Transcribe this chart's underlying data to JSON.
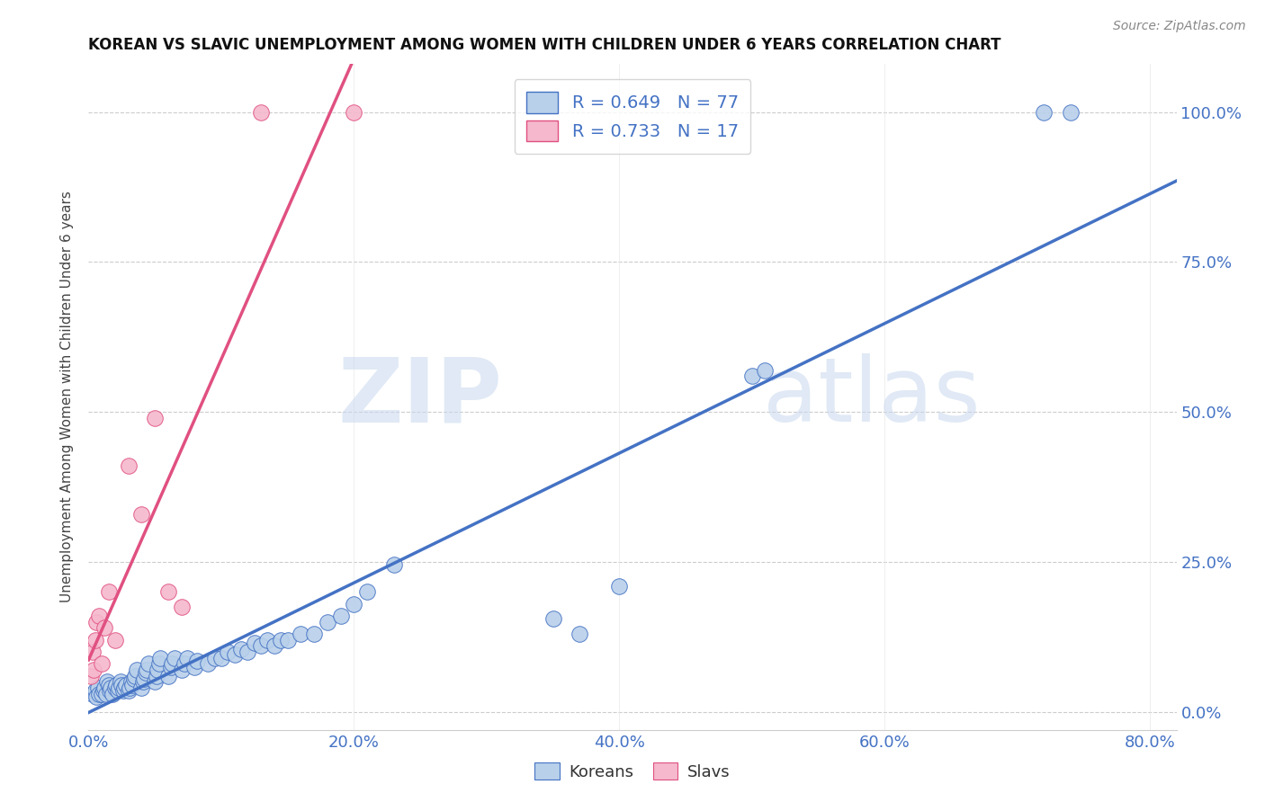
{
  "title": "KOREAN VS SLAVIC UNEMPLOYMENT AMONG WOMEN WITH CHILDREN UNDER 6 YEARS CORRELATION CHART",
  "source": "Source: ZipAtlas.com",
  "ylabel": "Unemployment Among Women with Children Under 6 years",
  "xlim": [
    0.0,
    0.82
  ],
  "ylim": [
    -0.03,
    1.08
  ],
  "korean_R": 0.649,
  "korean_N": 77,
  "slavic_R": 0.733,
  "slavic_N": 17,
  "korean_color": "#b8d0ea",
  "slavic_color": "#f5b8cc",
  "korean_line_color": "#4472c4",
  "slavic_line_color": "#e05080",
  "legend_text_color": "#4472c4",
  "background_color": "#ffffff",
  "watermark_zip": "ZIP",
  "watermark_atlas": "atlas",
  "korean_x": [
    0.003,
    0.005,
    0.006,
    0.007,
    0.008,
    0.01,
    0.011,
    0.012,
    0.013,
    0.014,
    0.015,
    0.016,
    0.017,
    0.018,
    0.02,
    0.021,
    0.022,
    0.023,
    0.024,
    0.025,
    0.026,
    0.027,
    0.028,
    0.03,
    0.031,
    0.032,
    0.033,
    0.034,
    0.035,
    0.036,
    0.04,
    0.041,
    0.042,
    0.043,
    0.044,
    0.045,
    0.05,
    0.051,
    0.052,
    0.053,
    0.054,
    0.06,
    0.062,
    0.063,
    0.065,
    0.07,
    0.072,
    0.074,
    0.08,
    0.082,
    0.09,
    0.095,
    0.1,
    0.105,
    0.11,
    0.115,
    0.12,
    0.125,
    0.13,
    0.135,
    0.14,
    0.145,
    0.15,
    0.16,
    0.17,
    0.18,
    0.19,
    0.2,
    0.21,
    0.23,
    0.35,
    0.37,
    0.4,
    0.5,
    0.51,
    0.72,
    0.74
  ],
  "korean_y": [
    0.03,
    0.035,
    0.025,
    0.04,
    0.03,
    0.03,
    0.035,
    0.04,
    0.03,
    0.05,
    0.045,
    0.035,
    0.04,
    0.03,
    0.04,
    0.045,
    0.035,
    0.04,
    0.05,
    0.045,
    0.035,
    0.04,
    0.045,
    0.035,
    0.04,
    0.05,
    0.045,
    0.055,
    0.06,
    0.07,
    0.04,
    0.05,
    0.055,
    0.065,
    0.07,
    0.08,
    0.05,
    0.06,
    0.07,
    0.08,
    0.09,
    0.06,
    0.075,
    0.08,
    0.09,
    0.07,
    0.08,
    0.09,
    0.075,
    0.085,
    0.08,
    0.09,
    0.09,
    0.1,
    0.095,
    0.105,
    0.1,
    0.115,
    0.11,
    0.12,
    0.11,
    0.12,
    0.12,
    0.13,
    0.13,
    0.15,
    0.16,
    0.18,
    0.2,
    0.245,
    0.155,
    0.13,
    0.21,
    0.56,
    0.57,
    1.0,
    1.0
  ],
  "slavic_x": [
    0.002,
    0.003,
    0.004,
    0.005,
    0.006,
    0.008,
    0.01,
    0.012,
    0.015,
    0.02,
    0.03,
    0.04,
    0.05,
    0.06,
    0.07,
    0.13,
    0.2
  ],
  "slavic_y": [
    0.06,
    0.1,
    0.07,
    0.12,
    0.15,
    0.16,
    0.08,
    0.14,
    0.2,
    0.12,
    0.41,
    0.33,
    0.49,
    0.2,
    0.175,
    1.0,
    1.0
  ]
}
